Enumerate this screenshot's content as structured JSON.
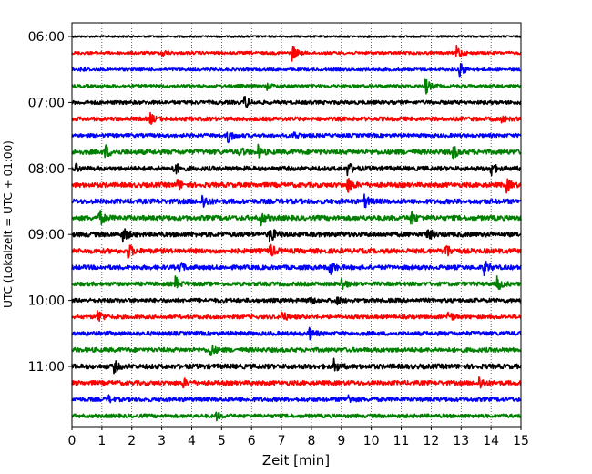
{
  "chart_data": {
    "type": "line",
    "title": "",
    "xlabel": "Zeit  [min]",
    "ylabel": "UTC (Lokalzeit = UTC + 01:00)",
    "xlim": [
      0,
      15
    ],
    "x_ticks": [
      "0",
      "1",
      "2",
      "3",
      "4",
      "5",
      "6",
      "7",
      "8",
      "9",
      "10",
      "11",
      "12",
      "13",
      "14",
      "15"
    ],
    "y_ticks": [
      "06:00",
      "07:00",
      "08:00",
      "09:00",
      "10:00",
      "11:00"
    ],
    "grid": "vertical-dotted",
    "trace_minutes": 15,
    "trace_colors": [
      "#000000",
      "#ff0000",
      "#0000ff",
      "#008000"
    ],
    "traces": [
      {
        "start": "06:00",
        "events": [],
        "amp": 1.0
      },
      {
        "start": "06:15",
        "events": [
          {
            "t": 3.0,
            "a": 4
          },
          {
            "t": 7.35,
            "a": 10
          },
          {
            "t": 12.85,
            "a": 9
          }
        ],
        "amp": 1.6
      },
      {
        "start": "06:30",
        "events": [
          {
            "t": 0.3,
            "a": 3
          },
          {
            "t": 12.95,
            "a": 11
          }
        ],
        "amp": 1.5
      },
      {
        "start": "06:45",
        "events": [
          {
            "t": 6.5,
            "a": 4
          },
          {
            "t": 11.8,
            "a": 10
          }
        ],
        "amp": 1.6
      },
      {
        "start": "07:00",
        "events": [
          {
            "t": 5.75,
            "a": 9
          }
        ],
        "amp": 2.0
      },
      {
        "start": "07:15",
        "events": [
          {
            "t": 2.6,
            "a": 6
          },
          {
            "t": 14.3,
            "a": 4
          }
        ],
        "amp": 2.2
      },
      {
        "start": "07:30",
        "events": [
          {
            "t": 5.2,
            "a": 10
          },
          {
            "t": 7.4,
            "a": 5
          }
        ],
        "amp": 2.0
      },
      {
        "start": "07:45",
        "events": [
          {
            "t": 1.1,
            "a": 8
          },
          {
            "t": 5.6,
            "a": 5
          },
          {
            "t": 6.2,
            "a": 7
          },
          {
            "t": 12.7,
            "a": 9
          }
        ],
        "amp": 2.6
      },
      {
        "start": "08:00",
        "events": [
          {
            "t": 0.1,
            "a": 4
          },
          {
            "t": 3.4,
            "a": 8
          },
          {
            "t": 9.2,
            "a": 9
          },
          {
            "t": 13.95,
            "a": 11
          }
        ],
        "amp": 2.4
      },
      {
        "start": "08:15",
        "events": [
          {
            "t": 3.5,
            "a": 7
          },
          {
            "t": 9.2,
            "a": 10
          },
          {
            "t": 14.5,
            "a": 8
          }
        ],
        "amp": 2.6
      },
      {
        "start": "08:30",
        "events": [
          {
            "t": 4.35,
            "a": 9
          },
          {
            "t": 9.75,
            "a": 8
          }
        ],
        "amp": 2.6
      },
      {
        "start": "08:45",
        "events": [
          {
            "t": 0.9,
            "a": 10
          },
          {
            "t": 6.3,
            "a": 9
          },
          {
            "t": 11.3,
            "a": 10
          }
        ],
        "amp": 2.6
      },
      {
        "start": "09:00",
        "events": [
          {
            "t": 1.7,
            "a": 9
          },
          {
            "t": 6.6,
            "a": 11
          },
          {
            "t": 11.85,
            "a": 9
          }
        ],
        "amp": 2.6
      },
      {
        "start": "09:15",
        "events": [
          {
            "t": 1.85,
            "a": 11
          },
          {
            "t": 6.6,
            "a": 9
          },
          {
            "t": 12.45,
            "a": 11
          }
        ],
        "amp": 2.6
      },
      {
        "start": "09:30",
        "events": [
          {
            "t": 3.6,
            "a": 6
          },
          {
            "t": 8.6,
            "a": 11
          },
          {
            "t": 13.75,
            "a": 9
          }
        ],
        "amp": 2.4
      },
      {
        "start": "09:45",
        "events": [
          {
            "t": 3.45,
            "a": 8
          },
          {
            "t": 9.0,
            "a": 8
          },
          {
            "t": 14.2,
            "a": 9
          }
        ],
        "amp": 2.2
      },
      {
        "start": "10:00",
        "events": [
          {
            "t": 7.9,
            "a": 7
          },
          {
            "t": 8.8,
            "a": 5
          }
        ],
        "amp": 2.2
      },
      {
        "start": "10:15",
        "events": [
          {
            "t": 0.85,
            "a": 11
          },
          {
            "t": 7.0,
            "a": 8
          },
          {
            "t": 12.55,
            "a": 9
          }
        ],
        "amp": 2.0
      },
      {
        "start": "10:30",
        "events": [
          {
            "t": 7.9,
            "a": 8
          }
        ],
        "amp": 2.2
      },
      {
        "start": "10:45",
        "events": [
          {
            "t": 4.6,
            "a": 8
          }
        ],
        "amp": 2.4
      },
      {
        "start": "11:00",
        "events": [
          {
            "t": 1.4,
            "a": 6
          },
          {
            "t": 8.75,
            "a": 8
          }
        ],
        "amp": 2.6
      },
      {
        "start": "11:15",
        "events": [
          {
            "t": 3.7,
            "a": 5
          },
          {
            "t": 13.6,
            "a": 8
          }
        ],
        "amp": 2.4
      },
      {
        "start": "11:30",
        "events": [
          {
            "t": 1.2,
            "a": 4
          },
          {
            "t": 9.2,
            "a": 5
          }
        ],
        "amp": 2.2
      },
      {
        "start": "11:45",
        "events": [
          {
            "t": 4.8,
            "a": 5
          }
        ],
        "amp": 2.0
      }
    ]
  }
}
